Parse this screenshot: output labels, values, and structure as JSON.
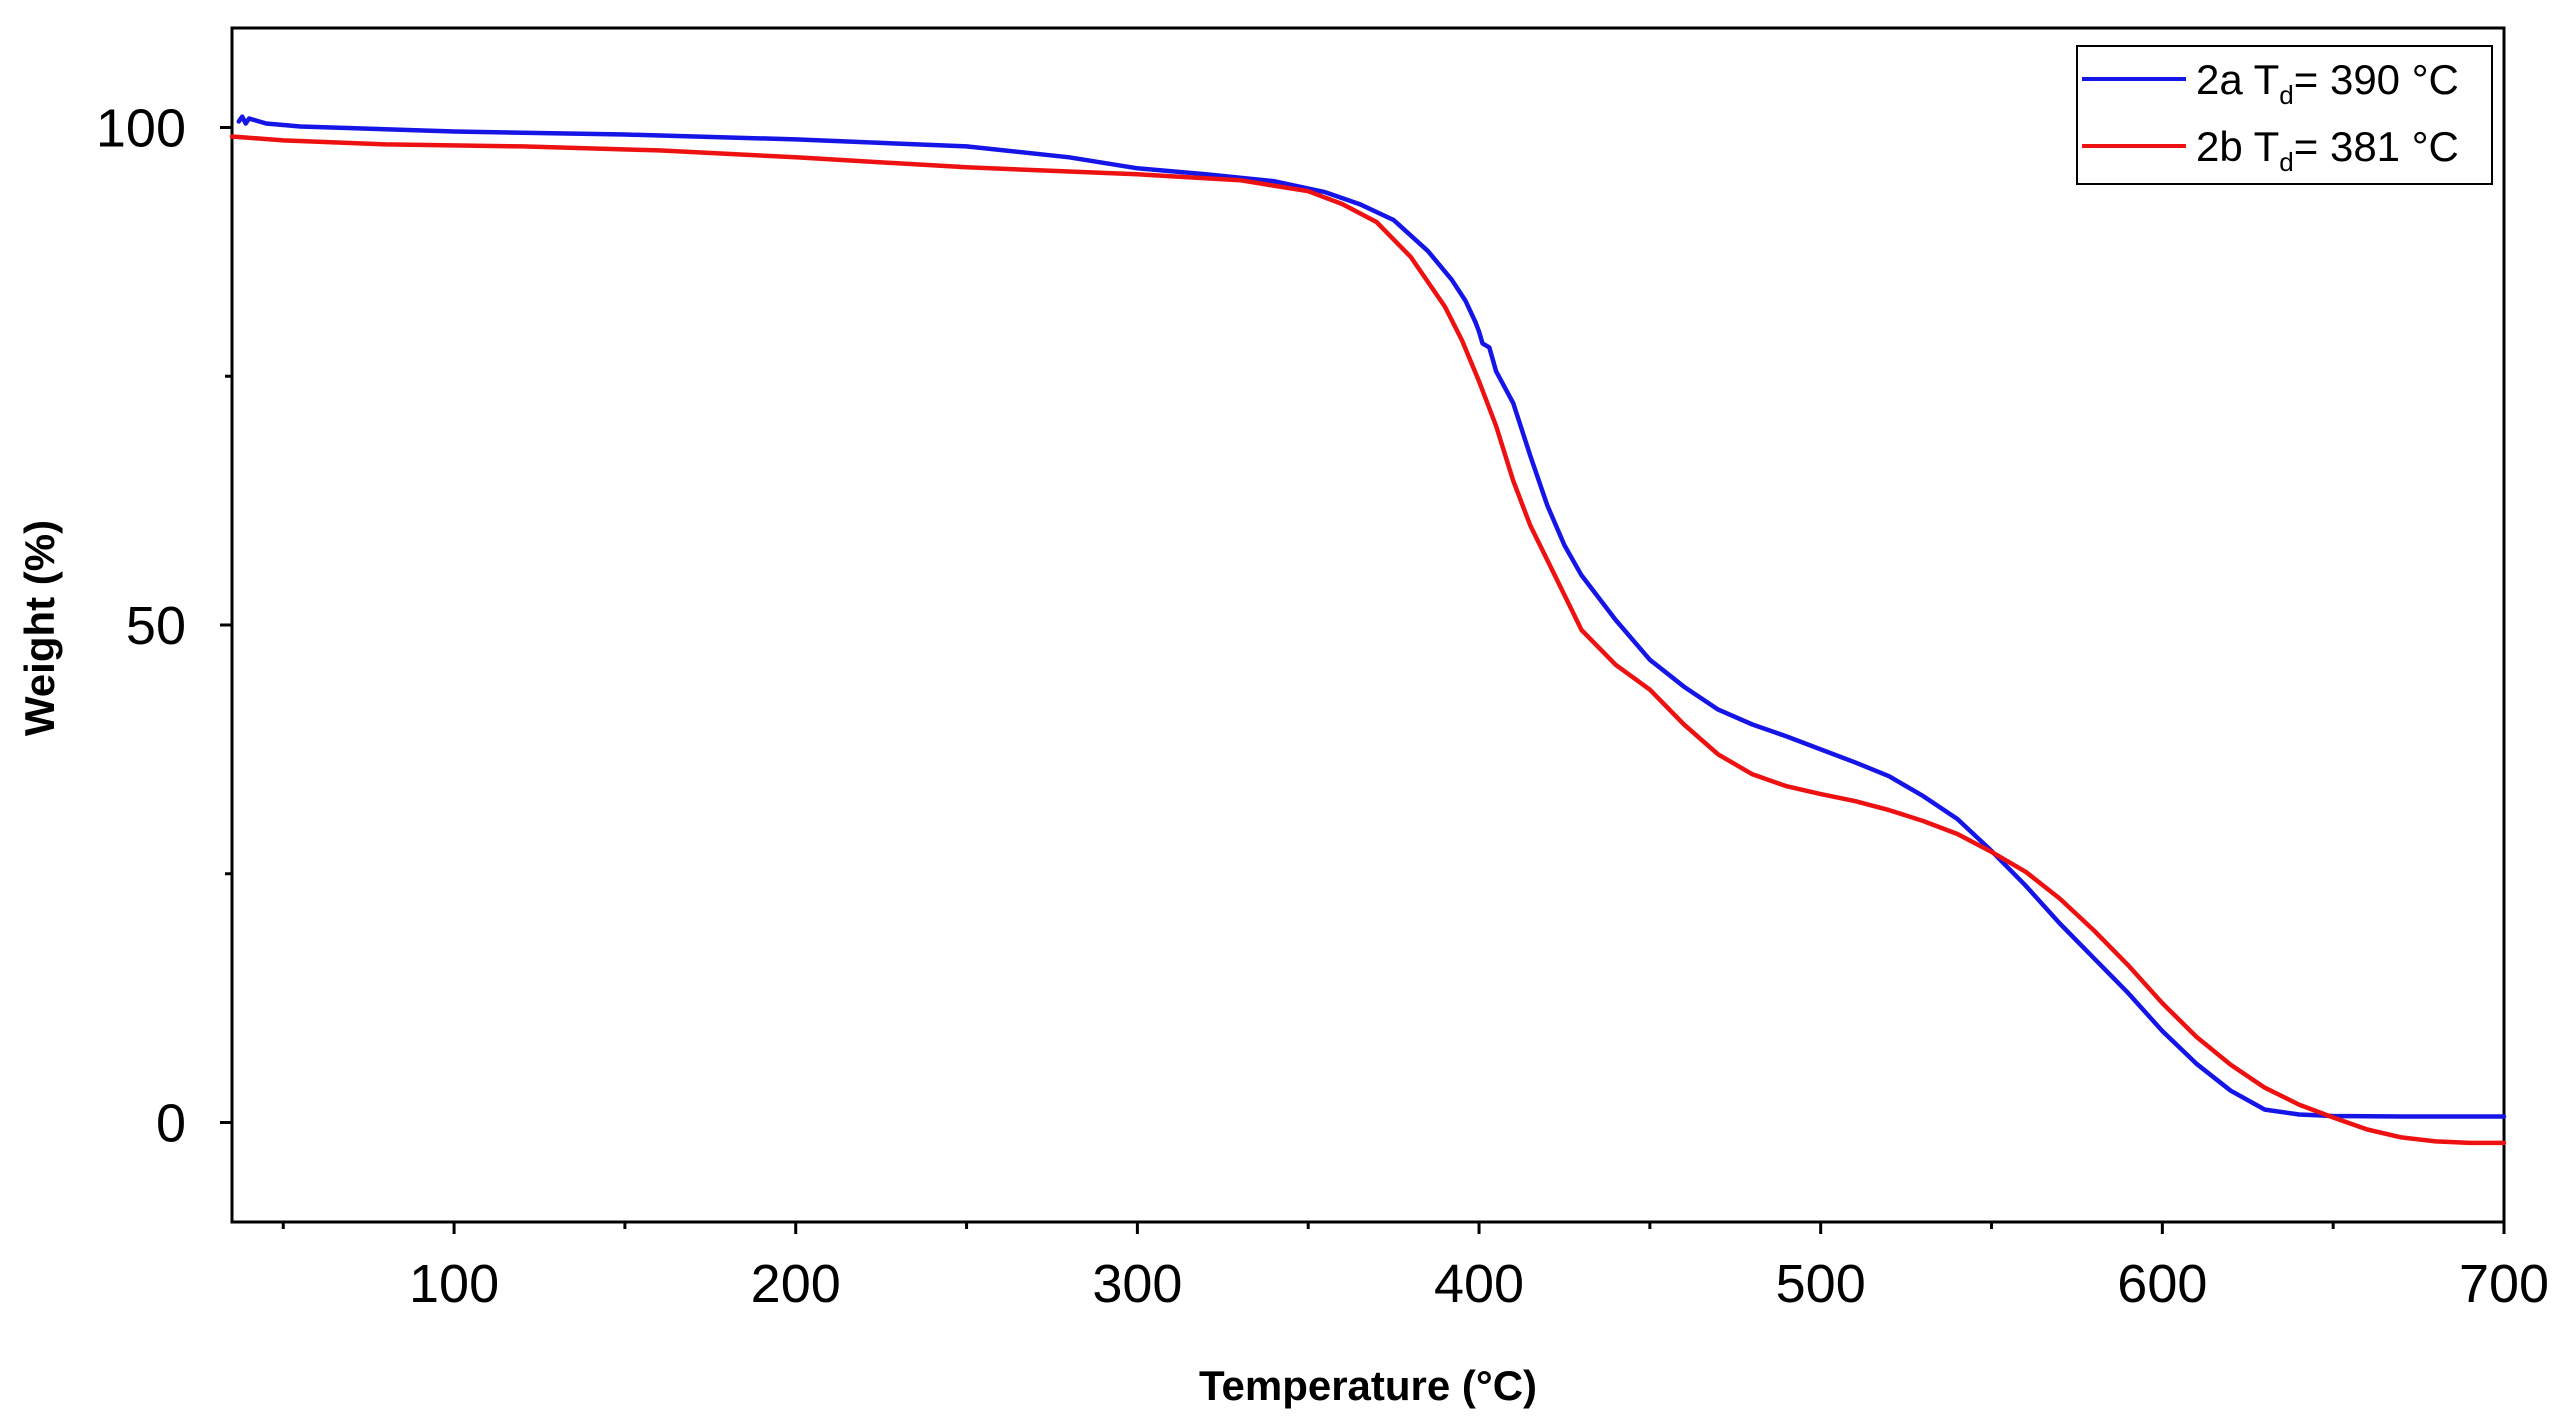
{
  "chart_data": {
    "type": "line",
    "title": "",
    "xlabel": "Temperature (°C)",
    "ylabel": "Weight (%)",
    "xlim": [
      35,
      700
    ],
    "ylim": [
      -10,
      110
    ],
    "x_ticks": [
      100,
      200,
      300,
      400,
      500,
      600,
      700
    ],
    "x_tick_labels": [
      "100",
      "200",
      "300",
      "400",
      "500",
      "600",
      "700"
    ],
    "x_minor_ticks": [
      50,
      150,
      250,
      350,
      450,
      550,
      650
    ],
    "y_ticks": [
      0,
      50,
      100
    ],
    "y_tick_labels": [
      "0",
      "50",
      "100"
    ],
    "y_minor_ticks": [
      25,
      75
    ],
    "grid": false,
    "legend_position": "top-right",
    "series": [
      {
        "name": "2a",
        "legend": {
          "prefix": "2a T",
          "subscript": "d",
          "suffix": "= 390 °C"
        },
        "color": "#1515e8",
        "points": [
          [
            37,
            100.6
          ],
          [
            38,
            101.1
          ],
          [
            39,
            100.4
          ],
          [
            40,
            100.9
          ],
          [
            45,
            100.4
          ],
          [
            55,
            100.1
          ],
          [
            100,
            99.6
          ],
          [
            150,
            99.3
          ],
          [
            200,
            98.8
          ],
          [
            250,
            98.1
          ],
          [
            280,
            97.0
          ],
          [
            300,
            95.9
          ],
          [
            320,
            95.3
          ],
          [
            340,
            94.6
          ],
          [
            355,
            93.5
          ],
          [
            365,
            92.3
          ],
          [
            375,
            90.7
          ],
          [
            385,
            87.6
          ],
          [
            392,
            84.7
          ],
          [
            396,
            82.6
          ],
          [
            399,
            80.4
          ],
          [
            400,
            79.5
          ],
          [
            401,
            78.3
          ],
          [
            403,
            77.9
          ],
          [
            405,
            75.5
          ],
          [
            410,
            72.3
          ],
          [
            415,
            67.0
          ],
          [
            420,
            62.0
          ],
          [
            425,
            58.0
          ],
          [
            430,
            55.0
          ],
          [
            440,
            50.5
          ],
          [
            450,
            46.5
          ],
          [
            460,
            43.8
          ],
          [
            470,
            41.5
          ],
          [
            480,
            40.0
          ],
          [
            490,
            38.8
          ],
          [
            500,
            37.5
          ],
          [
            510,
            36.2
          ],
          [
            520,
            34.8
          ],
          [
            530,
            32.8
          ],
          [
            540,
            30.5
          ],
          [
            550,
            27.3
          ],
          [
            560,
            23.8
          ],
          [
            570,
            20.0
          ],
          [
            580,
            16.5
          ],
          [
            590,
            13.0
          ],
          [
            600,
            9.2
          ],
          [
            610,
            5.9
          ],
          [
            620,
            3.2
          ],
          [
            630,
            1.3
          ],
          [
            640,
            0.8
          ],
          [
            650,
            0.65
          ],
          [
            670,
            0.6
          ],
          [
            700,
            0.6
          ]
        ]
      },
      {
        "name": "2b",
        "legend": {
          "prefix": "2b T",
          "subscript": "d",
          "suffix": "= 381 °C"
        },
        "color": "#ee1111",
        "points": [
          [
            35,
            99.1
          ],
          [
            50,
            98.7
          ],
          [
            80,
            98.3
          ],
          [
            120,
            98.1
          ],
          [
            160,
            97.7
          ],
          [
            200,
            97.0
          ],
          [
            250,
            96.0
          ],
          [
            300,
            95.3
          ],
          [
            330,
            94.7
          ],
          [
            350,
            93.6
          ],
          [
            360,
            92.3
          ],
          [
            370,
            90.5
          ],
          [
            380,
            87.0
          ],
          [
            390,
            82.0
          ],
          [
            395,
            78.6
          ],
          [
            400,
            74.5
          ],
          [
            405,
            70.0
          ],
          [
            410,
            64.5
          ],
          [
            415,
            60.0
          ],
          [
            420,
            56.5
          ],
          [
            425,
            53.0
          ],
          [
            430,
            49.5
          ],
          [
            440,
            46.0
          ],
          [
            450,
            43.5
          ],
          [
            460,
            40.0
          ],
          [
            470,
            37.0
          ],
          [
            480,
            35.0
          ],
          [
            490,
            33.8
          ],
          [
            500,
            33.0
          ],
          [
            510,
            32.3
          ],
          [
            520,
            31.4
          ],
          [
            530,
            30.3
          ],
          [
            540,
            29.0
          ],
          [
            550,
            27.2
          ],
          [
            560,
            25.2
          ],
          [
            570,
            22.5
          ],
          [
            580,
            19.3
          ],
          [
            590,
            15.8
          ],
          [
            600,
            12.0
          ],
          [
            610,
            8.6
          ],
          [
            620,
            5.8
          ],
          [
            630,
            3.5
          ],
          [
            640,
            1.8
          ],
          [
            650,
            0.5
          ],
          [
            660,
            -0.7
          ],
          [
            670,
            -1.5
          ],
          [
            680,
            -1.9
          ],
          [
            690,
            -2.05
          ],
          [
            700,
            -2.05
          ]
        ]
      }
    ]
  }
}
